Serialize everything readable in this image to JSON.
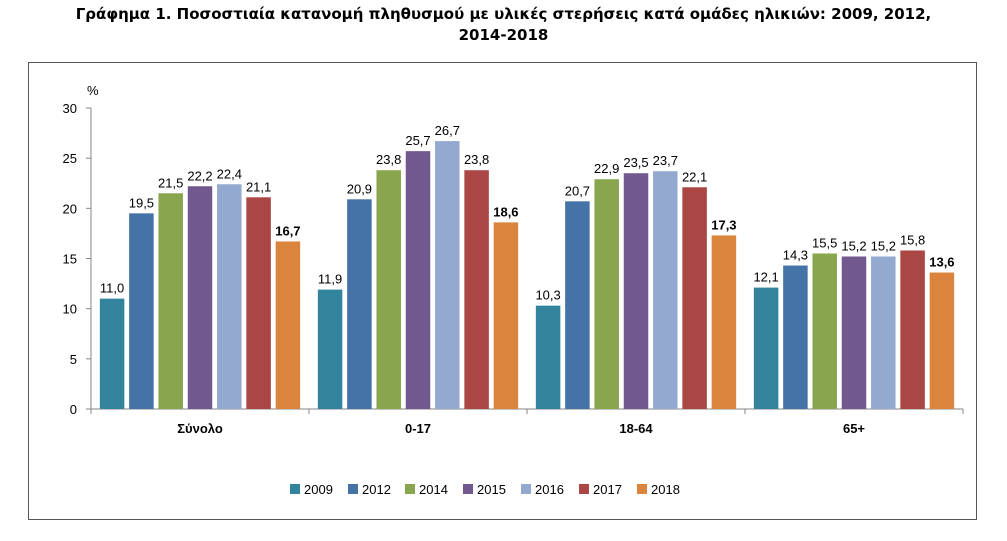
{
  "title_line1": "Γράφημα 1. Ποσοστιαία κατανομή πληθυσμού με υλικές στερήσεις κατά ομάδες ηλικιών: 2009, 2012,",
  "title_line2": "2014-2018",
  "chart_data": {
    "type": "bar",
    "title": "Γράφημα 1. Ποσοστιαία κατανομή πληθυσμού με υλικές στερήσεις κατά ομάδες ηλικιών: 2009, 2012, 2014-2018",
    "ylabel": "%",
    "xlabel": "",
    "ylim": [
      0,
      30
    ],
    "yticks": [
      "0",
      "5",
      "10",
      "15",
      "20",
      "25",
      "30"
    ],
    "grid": false,
    "legend_position": "bottom",
    "categories": [
      "Σύνολο",
      "0-17",
      "18-64",
      "65+"
    ],
    "series": [
      {
        "name": "2009",
        "color": "#31849b",
        "values": [
          11.0,
          11.9,
          10.3,
          12.1
        ],
        "labels": [
          "11,0",
          "11,9",
          "10,3",
          "12,1"
        ],
        "bold": false
      },
      {
        "name": "2012",
        "color": "#4572a7",
        "values": [
          19.5,
          20.9,
          20.7,
          14.3
        ],
        "labels": [
          "19,5",
          "20,9",
          "20,7",
          "14,3"
        ],
        "bold": false
      },
      {
        "name": "2014",
        "color": "#89a54e",
        "values": [
          21.5,
          23.8,
          22.9,
          15.5
        ],
        "labels": [
          "21,5",
          "23,8",
          "22,9",
          "15,5"
        ],
        "bold": false
      },
      {
        "name": "2015",
        "color": "#71588f",
        "values": [
          22.2,
          25.7,
          23.5,
          15.2
        ],
        "labels": [
          "22,2",
          "25,7",
          "23,5",
          "15,2"
        ],
        "bold": false
      },
      {
        "name": "2016",
        "color": "#93a9cf",
        "values": [
          22.4,
          26.7,
          23.7,
          15.2
        ],
        "labels": [
          "22,4",
          "26,7",
          "23,7",
          "15,2"
        ],
        "bold": false
      },
      {
        "name": "2017",
        "color": "#aa4643",
        "values": [
          21.1,
          23.8,
          22.1,
          15.8
        ],
        "labels": [
          "21,1",
          "23,8",
          "22,1",
          "15,8"
        ],
        "bold": false
      },
      {
        "name": "2018",
        "color": "#db843d",
        "values": [
          16.7,
          18.6,
          17.3,
          13.6
        ],
        "labels": [
          "16,7",
          "18,6",
          "17,3",
          "13,6"
        ],
        "bold": true
      }
    ]
  }
}
